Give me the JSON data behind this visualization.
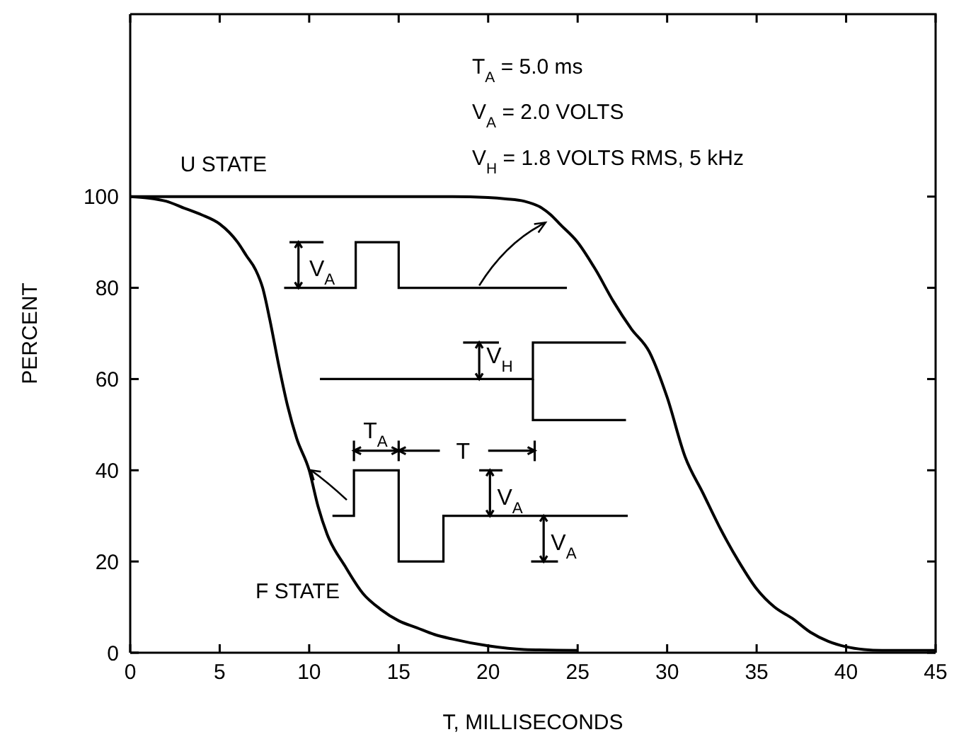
{
  "chart_data": {
    "type": "line",
    "xlabel": "T, MILLISECONDS",
    "ylabel": "PERCENT",
    "xlim": [
      0,
      45
    ],
    "xticks": [
      0,
      5,
      10,
      15,
      20,
      25,
      30,
      35,
      40,
      45
    ],
    "ylim": [
      0,
      140
    ],
    "yticks": [
      0,
      20,
      40,
      60,
      80,
      100
    ],
    "marker": "none",
    "line_style": "solid",
    "series": [
      {
        "name": "U STATE",
        "color": "#000000",
        "x": [
          0,
          5,
          10,
          15,
          18,
          20,
          21,
          22,
          23,
          23.5,
          24,
          25,
          26,
          27,
          28,
          29,
          30,
          31,
          32,
          33,
          34,
          35,
          36,
          37,
          38,
          39,
          40,
          41,
          42,
          45
        ],
        "values": [
          100,
          100,
          100,
          100,
          100,
          99.8,
          99.5,
          99,
          97.5,
          96,
          94,
          90,
          84,
          77,
          71,
          66,
          56,
          43,
          35,
          27,
          20,
          14,
          10,
          7.5,
          4.5,
          2.5,
          1.3,
          0.7,
          0.5,
          0.5
        ]
      },
      {
        "name": "F STATE",
        "color": "#000000",
        "x": [
          0,
          1,
          2,
          3,
          4,
          5,
          6,
          6.5,
          7,
          7.4,
          7.8,
          8.3,
          8.8,
          9.3,
          10,
          10.5,
          11,
          12,
          13,
          14,
          15,
          16,
          17,
          18,
          20,
          22,
          25
        ],
        "values": [
          100,
          99.7,
          99,
          97.5,
          96,
          94,
          90,
          87,
          84,
          80,
          73,
          63,
          54,
          47,
          40,
          32,
          26,
          19,
          13,
          9.5,
          7,
          5.5,
          4,
          3,
          1.5,
          0.7,
          0.5
        ]
      }
    ],
    "annotations": [
      "T$_{A}$ = 5.0 ms",
      "V$_{A}$ = 2.0 VOLTS",
      "V$_{H}$ = 1.8 VOLTS RMS, 5 kHz",
      "V$_{A}$",
      "V$_{H}$",
      "T$_{A}$",
      "T",
      "V$_{A}$",
      "V$_{A}$"
    ]
  }
}
